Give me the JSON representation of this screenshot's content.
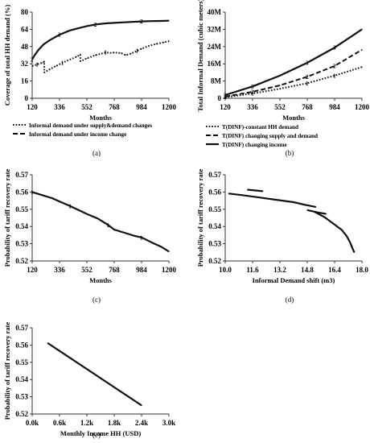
{
  "chart_data": [
    {
      "panel": "(a)",
      "type": "line",
      "xlabel": "Months",
      "ylabel": "Coverage of total HH demand (%)",
      "xlim": [
        120,
        1200
      ],
      "ylim": [
        0,
        80
      ],
      "xticks": [
        "120",
        "336",
        "552",
        "768",
        "984",
        "1200"
      ],
      "yticks": [
        "0",
        "16",
        "32",
        "48",
        "64",
        "80"
      ],
      "grid": false,
      "legend": "below",
      "series": [
        {
          "name": "",
          "marker": "2",
          "style": "solid",
          "x": [
            120,
            140,
            170,
            210,
            260,
            336,
            420,
            500,
            552,
            620,
            700,
            768,
            850,
            930,
            984,
            1060,
            1140,
            1200
          ],
          "y": [
            36,
            40,
            45,
            50,
            54,
            59,
            63,
            65.5,
            67,
            68.5,
            69.5,
            70,
            70.5,
            71,
            71.3,
            71.6,
            71.8,
            72
          ]
        },
        {
          "name": "Informal demand under supply&demand changes",
          "marker": "1",
          "style": "dotted",
          "x": [
            120,
            160,
            200,
            215,
            216,
            260,
            310,
            360,
            420,
            470,
            500,
            501,
            552,
            620,
            700,
            740,
            768,
            820,
            860,
            900,
            950,
            984,
            1040,
            1100,
            1160,
            1200
          ],
          "y": [
            30,
            31.5,
            33,
            34,
            24,
            27,
            30,
            33,
            36,
            38.5,
            40.5,
            34.5,
            37,
            40,
            42.5,
            42,
            42.5,
            42,
            40,
            41.5,
            44,
            46,
            48.5,
            50.5,
            52,
            53
          ]
        },
        {
          "name": "Informal demand under income change",
          "marker": "",
          "style": "dashed",
          "x": [
            120,
            1200
          ],
          "y": [
            null,
            null
          ]
        }
      ]
    },
    {
      "panel": "(b)",
      "type": "line",
      "xlabel": "Months",
      "ylabel": "Total Informal Demand (cubic meters)",
      "xlim": [
        120,
        1200
      ],
      "ylim": [
        0,
        40
      ],
      "xticks": [
        "120",
        "336",
        "552",
        "768",
        "984",
        "1200"
      ],
      "yticks": [
        "0",
        "8M",
        "16M",
        "24M",
        "32M",
        "40M"
      ],
      "grid": false,
      "legend": "below",
      "series": [
        {
          "name": "T(DINF)-constant HH demand",
          "marker": "1",
          "style": "dotted",
          "x": [
            120,
            336,
            552,
            768,
            984,
            1200
          ],
          "y": [
            0.5,
            2.2,
            4.4,
            7.0,
            10.5,
            14.5
          ]
        },
        {
          "name": "T(DINF) changing supply and demand",
          "marker": "2",
          "style": "dashed",
          "x": [
            120,
            336,
            552,
            768,
            984,
            1200
          ],
          "y": [
            0.8,
            3.0,
            6.0,
            10.0,
            15.0,
            22.5
          ]
        },
        {
          "name": "T(DINF) changing income",
          "marker": "3",
          "style": "solid",
          "x": [
            120,
            336,
            552,
            768,
            984,
            1200
          ],
          "y": [
            1.5,
            5.5,
            10.5,
            16.5,
            23.5,
            32.0
          ]
        }
      ]
    },
    {
      "panel": "(c)",
      "type": "line",
      "xlabel": "Months",
      "ylabel": "Probability of tariff recovery rate",
      "xlim": [
        120,
        1200
      ],
      "ylim": [
        0.515,
        0.57
      ],
      "xticks": [
        "120",
        "336",
        "552",
        "768",
        "984",
        "1200"
      ],
      "yticks": [
        "0.52",
        "0.53",
        "0.54",
        "0.55",
        "0.56",
        "0.57"
      ],
      "grid": false,
      "series": [
        {
          "name": "",
          "marker": "1",
          "style": "solid",
          "x": [
            120,
            200,
            280,
            336,
            420,
            500,
            552,
            640,
            720,
            768,
            850,
            930,
            984,
            1060,
            1140,
            1200
          ],
          "y": [
            0.559,
            0.557,
            0.555,
            0.553,
            0.55,
            0.547,
            0.545,
            0.542,
            0.538,
            0.535,
            0.533,
            0.531,
            0.53,
            0.527,
            0.524,
            0.521
          ]
        }
      ]
    },
    {
      "panel": "(d)",
      "type": "line",
      "xlabel": "Informal Demand shift (m3)",
      "ylabel": "Probability of tariff recovery rate",
      "xlim": [
        10.0,
        18.0
      ],
      "ylim": [
        0.515,
        0.57
      ],
      "xticks": [
        "10.0",
        "11.6",
        "13.2",
        "14.8",
        "16.4",
        "18.0"
      ],
      "yticks": [
        "0.52",
        "0.53",
        "0.54",
        "0.55",
        "0.56",
        "0.57"
      ],
      "grid": false,
      "series": [
        {
          "name": "",
          "marker": "",
          "style": "solid",
          "x": [
            10.2,
            11.0,
            12.0,
            13.0,
            14.0,
            14.6,
            15.3
          ],
          "y": [
            0.558,
            0.557,
            0.5555,
            0.554,
            0.5525,
            0.551,
            0.5495
          ]
        },
        {
          "name": "",
          "marker": "",
          "style": "solid",
          "x": [
            11.3,
            12.2
          ],
          "y": [
            0.5605,
            0.5595
          ]
        },
        {
          "name": "",
          "marker": "",
          "style": "solid",
          "x": [
            14.8,
            15.4,
            15.9
          ],
          "y": [
            0.5475,
            0.546,
            0.545
          ]
        },
        {
          "name": "",
          "marker": "",
          "style": "solid",
          "x": [
            15.2,
            15.8,
            16.3,
            16.8,
            17.1,
            17.3,
            17.45,
            17.55
          ],
          "y": [
            0.5465,
            0.543,
            0.539,
            0.535,
            0.531,
            0.527,
            0.523,
            0.5205
          ]
        }
      ]
    },
    {
      "panel": "(e)",
      "type": "line",
      "xlabel": "Monthly Income HH (USD)",
      "ylabel": "Probability of tariff recovery rate",
      "xlim": [
        0,
        3000
      ],
      "ylim": [
        0.515,
        0.57
      ],
      "xticks": [
        "0.0k",
        "0.6k",
        "1.2k",
        "1.8k",
        "2.4k",
        "3.0k"
      ],
      "yticks": [
        "0.52",
        "0.53",
        "0.54",
        "0.55",
        "0.56",
        "0.57"
      ],
      "grid": false,
      "series": [
        {
          "name": "",
          "marker": "",
          "style": "solid",
          "x": [
            340,
            2400
          ],
          "y": [
            0.5603,
            0.5205
          ]
        }
      ]
    }
  ]
}
